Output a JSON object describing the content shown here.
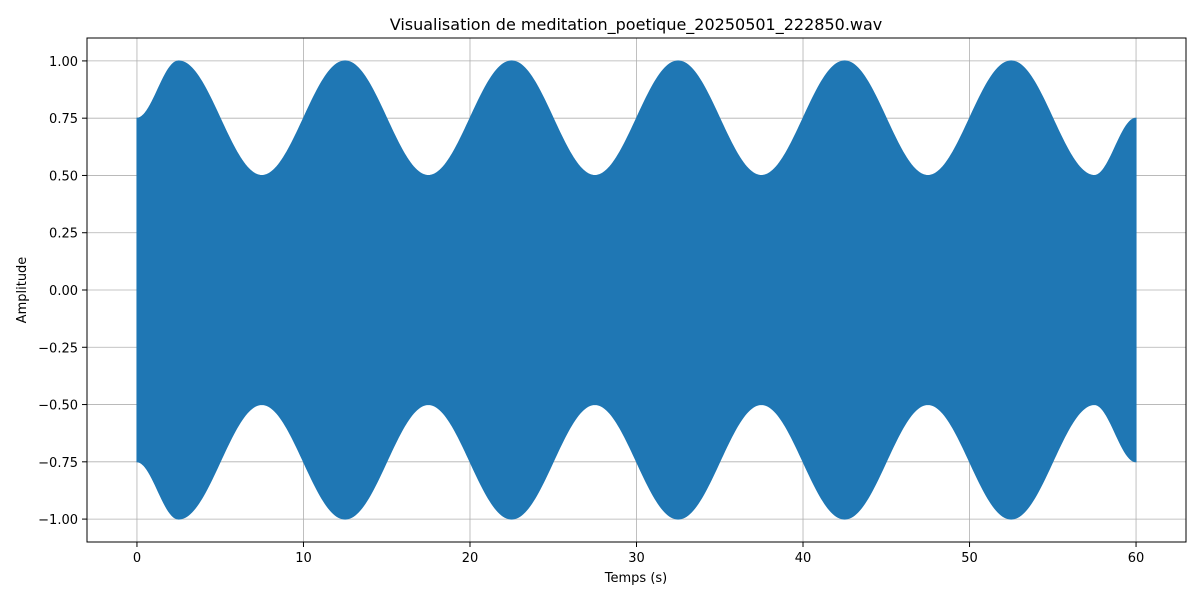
{
  "chart_data": {
    "type": "area",
    "title": "Visualisation de meditation_poetique_20250501_222850.wav",
    "xlabel": "Temps (s)",
    "ylabel": "Amplitude",
    "xlim": [
      -3,
      63
    ],
    "ylim": [
      -1.1,
      1.1
    ],
    "grid": true,
    "series_color": "#1f77b4",
    "x_ticks": [
      0,
      10,
      20,
      30,
      40,
      50,
      60
    ],
    "x_tick_labels": [
      "0",
      "10",
      "20",
      "30",
      "40",
      "50",
      "60"
    ],
    "y_ticks": [
      1.0,
      0.75,
      0.5,
      0.25,
      0.0,
      -0.25,
      -0.5,
      -0.75,
      -1.0
    ],
    "y_tick_labels": [
      "1.00",
      "0.75",
      "0.50",
      "0.25",
      "0.00",
      "−0.25",
      "−0.50",
      "−0.75",
      "−1.00"
    ],
    "envelope": {
      "x": [
        0,
        2.5,
        7.5,
        12.5,
        17.5,
        22.5,
        27.5,
        32.5,
        37.5,
        42.5,
        47.5,
        52.5,
        57.5,
        60
      ],
      "upper": [
        0.75,
        1.0,
        0.5,
        1.0,
        0.5,
        1.0,
        0.5,
        1.0,
        0.5,
        1.0,
        0.5,
        1.0,
        0.5,
        0.75
      ],
      "lower": [
        -0.75,
        -1.0,
        -0.5,
        -1.0,
        -0.5,
        -1.0,
        -0.5,
        -1.0,
        -0.5,
        -1.0,
        -0.5,
        -1.0,
        -0.5,
        -0.75
      ]
    }
  }
}
